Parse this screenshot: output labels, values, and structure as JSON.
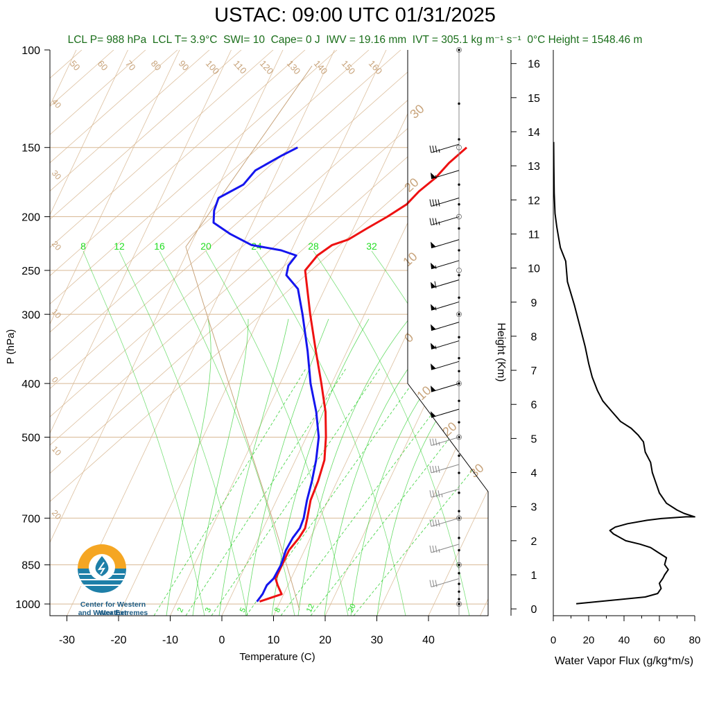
{
  "title": "USTAC: 09:00 UTC 01/31/2025",
  "subtitle": {
    "lcl_p": "LCL P= 988 hPa",
    "lcl_t": "LCL T= 3.9°C",
    "swi": "SWI= 10",
    "cape": "Cape= 0 J",
    "iwv": "IWV = 19.16 mm",
    "ivt": "IVT = 305.1 kg m⁻¹ s⁻¹",
    "zero_c_height": "0°C Height = 1548.46 m"
  },
  "logo": {
    "line1": "Center for Western Weather",
    "line2": "and Water Extremes",
    "icon": "water-drop-logo"
  },
  "colors": {
    "temperature": "#ee1111",
    "dewpoint": "#1515ee",
    "dry_adiabat": "#d8b894",
    "mixing_ratio": "#22cc22",
    "flux": "#000000"
  },
  "chart_data": [
    {
      "type": "line",
      "name": "skew-t",
      "xlabel": "Temperature (C)",
      "ylabel": "P (hPa)",
      "x_ticks": [
        -30,
        -20,
        -10,
        0,
        10,
        20,
        30,
        40
      ],
      "y_ticks": [
        100,
        150,
        200,
        250,
        300,
        400,
        500,
        700,
        850,
        1000
      ],
      "isotherm_labels": [
        -40,
        -30,
        -20,
        -10,
        0,
        10,
        20,
        30,
        40,
        50,
        60,
        70,
        80,
        90,
        100,
        110,
        120,
        130,
        140,
        150,
        160
      ],
      "mixing_ratio_upper_labels": [
        8,
        12,
        16,
        20,
        24,
        28,
        32
      ],
      "mixing_ratio_lower_labels": [
        2,
        3,
        5,
        8,
        12,
        20
      ],
      "right_edge_labels": [
        30,
        20,
        10,
        0,
        10,
        20,
        30
      ],
      "series": [
        {
          "key": "temperature",
          "p": [
            990,
            960,
            925,
            900,
            850,
            800,
            760,
            730,
            700,
            650,
            600,
            550,
            500,
            450,
            400,
            350,
            300,
            250,
            235,
            225,
            220,
            210,
            200,
            190,
            180,
            170,
            160,
            150
          ],
          "t": [
            6,
            9.6,
            8,
            7,
            7,
            7,
            7.8,
            8.1,
            7.6,
            6.6,
            6.3,
            5.6,
            3.8,
            1.4,
            -2,
            -6,
            -10.5,
            -15.5,
            -14.5,
            -12.6,
            -10,
            -7.4,
            -4.5,
            -1.9,
            -0.7,
            1.3,
            2.5,
            4.5
          ]
        },
        {
          "key": "dewpoint",
          "p": [
            990,
            960,
            925,
            900,
            850,
            800,
            760,
            730,
            700,
            650,
            600,
            550,
            500,
            450,
            400,
            350,
            300,
            270,
            255,
            245,
            235,
            230,
            225,
            215,
            205,
            195,
            185,
            175,
            165,
            155,
            150
          ],
          "t": [
            5.5,
            5.9,
            5.9,
            6.6,
            6.8,
            6.4,
            6.6,
            7.1,
            6.9,
            5.9,
            5.1,
            4,
            2.4,
            -0.4,
            -4.1,
            -7.6,
            -12,
            -15.2,
            -18.7,
            -19.2,
            -18.6,
            -22,
            -28.2,
            -33.3,
            -37.6,
            -38.6,
            -38.9,
            -35.3,
            -34.3,
            -30.5,
            -28.2
          ]
        }
      ],
      "wind_barbs": [
        {
          "p": 148,
          "speed_kt": 35
        },
        {
          "p": 165,
          "speed_kt": 55
        },
        {
          "p": 185,
          "speed_kt": 40
        },
        {
          "p": 200,
          "speed_kt": 35
        },
        {
          "p": 220,
          "speed_kt": 50
        },
        {
          "p": 240,
          "speed_kt": 55
        },
        {
          "p": 260,
          "speed_kt": 60
        },
        {
          "p": 285,
          "speed_kt": 55
        },
        {
          "p": 310,
          "speed_kt": 50
        },
        {
          "p": 335,
          "speed_kt": 55
        },
        {
          "p": 365,
          "speed_kt": 50
        },
        {
          "p": 400,
          "speed_kt": 50
        },
        {
          "p": 445,
          "speed_kt": 50
        },
        {
          "p": 500,
          "speed_kt": 35
        },
        {
          "p": 560,
          "speed_kt": 40
        },
        {
          "p": 620,
          "speed_kt": 45
        },
        {
          "p": 700,
          "speed_kt": 40
        },
        {
          "p": 780,
          "speed_kt": 35
        },
        {
          "p": 900,
          "speed_kt": 30
        }
      ]
    },
    {
      "type": "line",
      "name": "water-vapor-flux",
      "xlabel": "Water Vapor Flux (g/kg*m/s)",
      "ylabel": "Height (Km)",
      "xlim": [
        0,
        80
      ],
      "ylim": [
        -0.2,
        16.4
      ],
      "x_ticks": [
        0,
        20,
        40,
        60,
        80
      ],
      "y_ticks": [
        0,
        1,
        2,
        3,
        4,
        5,
        6,
        7,
        8,
        9,
        10,
        11,
        12,
        13,
        14,
        15,
        16
      ],
      "x": [
        13,
        52,
        59,
        61,
        60,
        62,
        63,
        65,
        63,
        64,
        61,
        58,
        55,
        49,
        41,
        34,
        32,
        35,
        42,
        53,
        61,
        75,
        80,
        74,
        70,
        64,
        60,
        58,
        56,
        55,
        52,
        51,
        48,
        44,
        38,
        33,
        28,
        25,
        22,
        20,
        18,
        15,
        12,
        8,
        7,
        4,
        3,
        2,
        1,
        0.5,
        0.3,
        0.2
      ],
      "y": [
        0.15,
        0.35,
        0.45,
        0.6,
        0.75,
        0.9,
        1.0,
        1.15,
        1.3,
        1.5,
        1.6,
        1.7,
        1.8,
        1.9,
        2.0,
        2.2,
        2.3,
        2.4,
        2.5,
        2.6,
        2.65,
        2.7,
        2.7,
        2.8,
        2.9,
        3.1,
        3.4,
        3.7,
        4.0,
        4.3,
        4.6,
        4.9,
        5.1,
        5.3,
        5.5,
        5.8,
        6.1,
        6.4,
        6.8,
        7.2,
        7.7,
        8.3,
        8.9,
        9.6,
        10.2,
        10.6,
        10.9,
        11.2,
        11.6,
        12.2,
        13.0,
        13.7
      ]
    }
  ]
}
